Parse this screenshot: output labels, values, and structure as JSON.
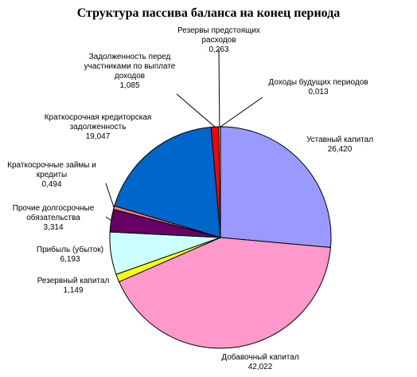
{
  "chart_data": {
    "type": "pie",
    "title": "Структура пассива баланса на конец периода",
    "categories": [
      "Доходы будущих периодов",
      "Уставный капитал",
      "Добавочный капитал",
      "Резервный капитал",
      "Прибыль (убыток)",
      "Прочие долгосрочные обязательства",
      "Краткосрочные займы и кредиты",
      "Краткосрочная кредиторская задолженность",
      "Задолженность перед участниками по выплате доходов",
      "Резервы предстоящих расходов"
    ],
    "values": [
      0.013,
      26.42,
      42.022,
      1.149,
      6.193,
      3.314,
      0.494,
      19.047,
      1.085,
      0.263
    ],
    "value_labels": [
      "0,013",
      "26,420",
      "42,022",
      "1,149",
      "6,193",
      "3,314",
      "0,494",
      "19,047",
      "1,085",
      "0,263"
    ],
    "colors": [
      "#333399",
      "#9999ff",
      "#ff99cc",
      "#ffff00",
      "#ccffff",
      "#660066",
      "#ff8080",
      "#0066cc",
      "#ff0000",
      "#c0c0c0"
    ]
  }
}
